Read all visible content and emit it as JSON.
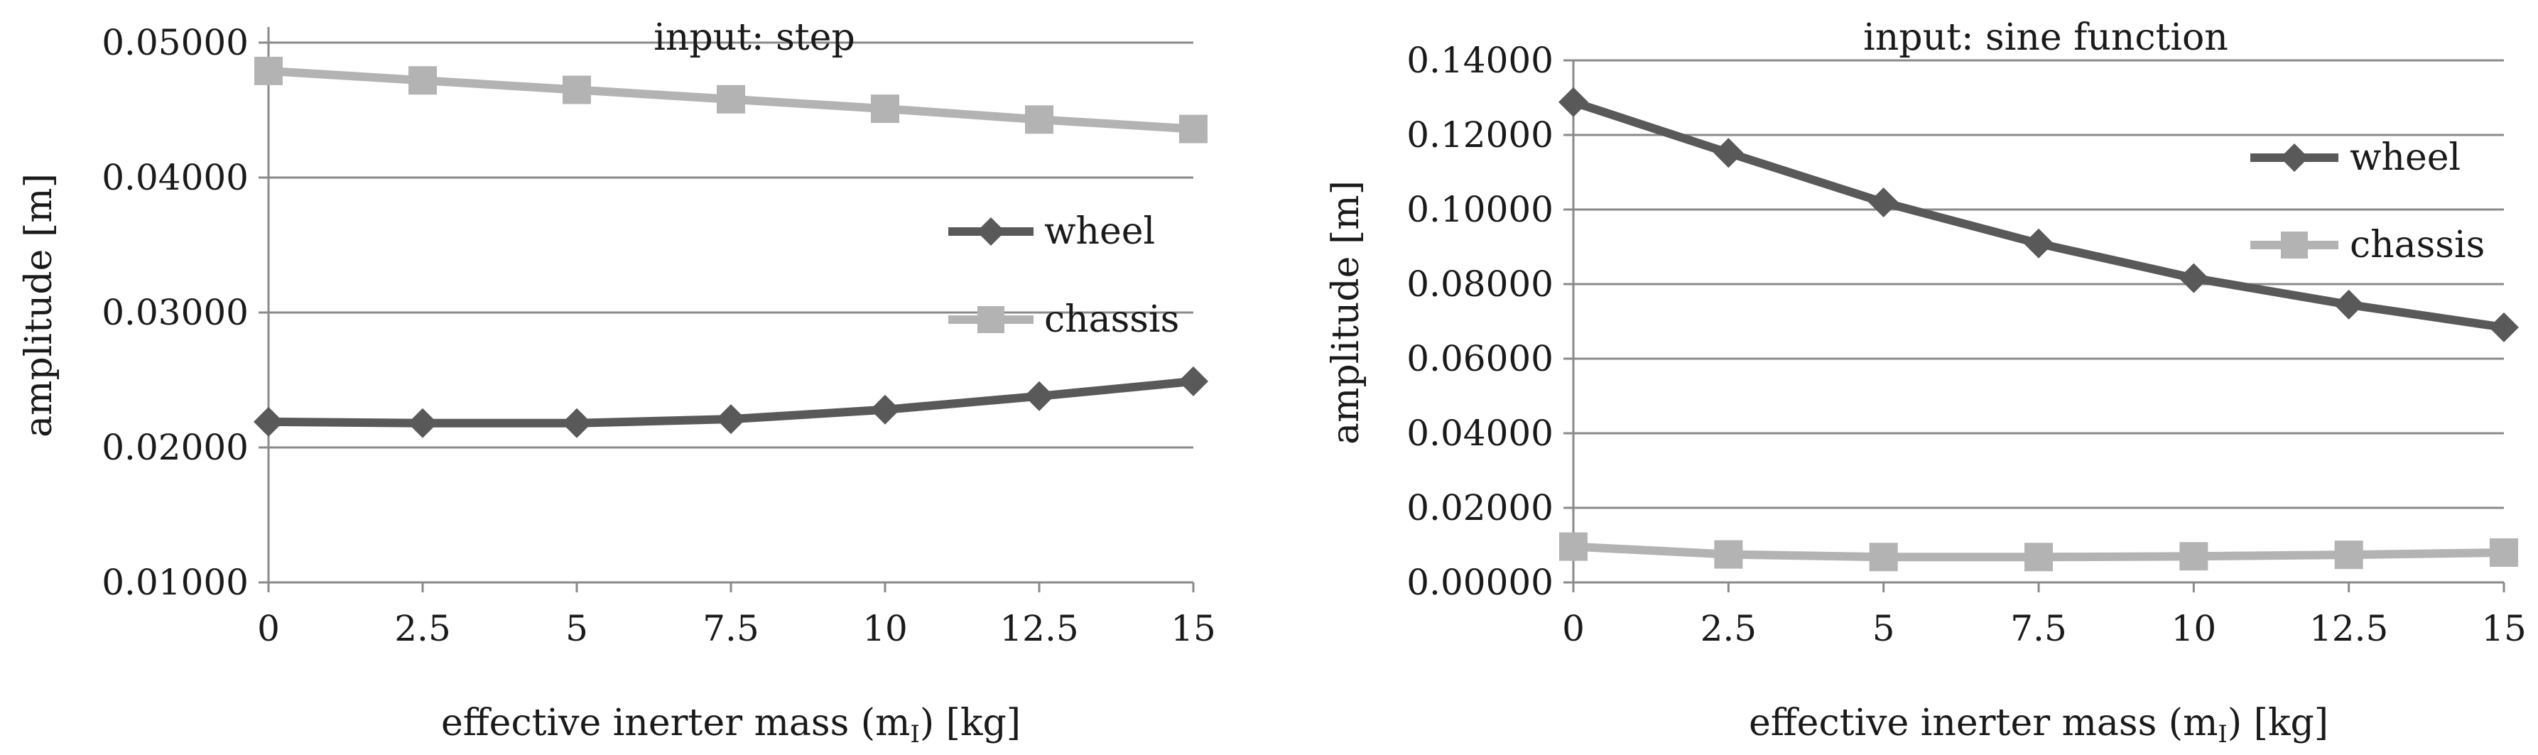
{
  "colors": {
    "wheel": "#595959",
    "chassis": "#b3b3b3"
  },
  "chart_data": [
    {
      "type": "line",
      "title": "input: step",
      "xlabel": "effective inerter mass (m",
      "xlabel_sub": "I",
      "xlabel_tail": ") [kg]",
      "ylabel": "amplitude [m]",
      "categories": [
        "0",
        "2.5",
        "5",
        "7.5",
        "10",
        "12.5",
        "15"
      ],
      "x": [
        0,
        2.5,
        5,
        7.5,
        10,
        12.5,
        15
      ],
      "ylim": [
        0.01,
        0.05
      ],
      "yticks": [
        "0.01000",
        "0.02000",
        "0.03000",
        "0.04000",
        "0.05000"
      ],
      "grid": true,
      "series": [
        {
          "name": "wheel",
          "marker": "diamond",
          "values": [
            0.0219,
            0.0218,
            0.0218,
            0.0221,
            0.0228,
            0.0238,
            0.0249
          ]
        },
        {
          "name": "chassis",
          "marker": "square",
          "values": [
            0.0479,
            0.0472,
            0.0465,
            0.0458,
            0.0451,
            0.0443,
            0.0436
          ]
        }
      ]
    },
    {
      "type": "line",
      "title": "input: sine function",
      "xlabel": "effective inerter mass (m",
      "xlabel_sub": "I",
      "xlabel_tail": ") [kg]",
      "ylabel": "amplitude [m]",
      "categories": [
        "0",
        "2.5",
        "5",
        "7.5",
        "10",
        "12.5",
        "15"
      ],
      "x": [
        0,
        2.5,
        5,
        7.5,
        10,
        12.5,
        15
      ],
      "ylim": [
        0,
        0.14
      ],
      "yticks": [
        "0.00000",
        "0.02000",
        "0.04000",
        "0.06000",
        "0.08000",
        "0.10000",
        "0.12000",
        "0.14000"
      ],
      "grid": true,
      "series": [
        {
          "name": "wheel",
          "marker": "diamond",
          "values": [
            0.1288,
            0.1152,
            0.1019,
            0.0909,
            0.0816,
            0.0745,
            0.0684
          ]
        },
        {
          "name": "chassis",
          "marker": "square",
          "values": [
            0.0096,
            0.0075,
            0.0068,
            0.0068,
            0.007,
            0.0074,
            0.008
          ]
        }
      ]
    }
  ]
}
